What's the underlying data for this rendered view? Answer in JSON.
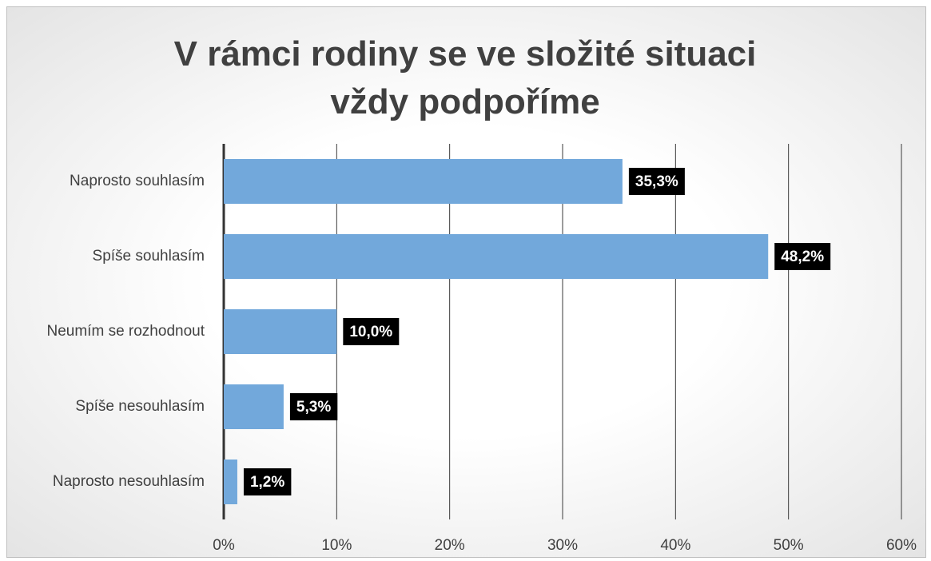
{
  "chart_data": {
    "type": "bar",
    "orientation": "horizontal",
    "title": "V rámci rodiny se ve složité situaci vždy podpoříme",
    "categories": [
      "Naprosto souhlasím",
      "Spíše souhlasím",
      "Neumím se rozhodnout",
      "Spíše nesouhlasím",
      "Naprosto nesouhlasím"
    ],
    "values": [
      35.3,
      48.2,
      10.0,
      5.3,
      1.2
    ],
    "value_labels": [
      "35,3%",
      "48,2%",
      "10,0%",
      "5,3%",
      "1,2%"
    ],
    "color": "#72a8db",
    "xlim": [
      0,
      60
    ],
    "xticks": [
      {
        "value": 0,
        "label": "0%"
      },
      {
        "value": 10,
        "label": "10%"
      },
      {
        "value": 20,
        "label": "20%"
      },
      {
        "value": 30,
        "label": "30%"
      },
      {
        "value": 40,
        "label": "40%"
      },
      {
        "value": 50,
        "label": "50%"
      },
      {
        "value": 60,
        "label": "60%"
      }
    ],
    "grid": true
  }
}
